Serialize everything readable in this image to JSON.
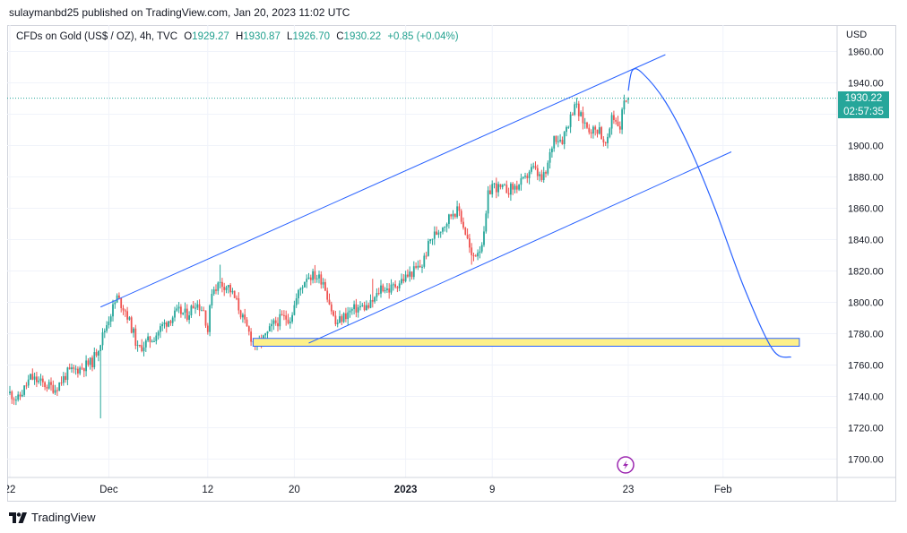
{
  "header": {
    "published": "sulaymanbd25 published on TradingView.com, Jan 20, 2023 11:02 UTC"
  },
  "legend": {
    "symbol": "CFDs on Gold (US$ / OZ), 4h, TVC",
    "open_label": "O",
    "open": "1929.27",
    "high_label": "H",
    "high": "1930.87",
    "low_label": "L",
    "low": "1926.70",
    "close_label": "C",
    "close": "1930.22",
    "change": "+0.85 (+0.04%)"
  },
  "price_axis": {
    "currency": "USD",
    "current_price": "1930.22",
    "countdown": "02:57:35"
  },
  "footer": {
    "brand": "TradingView"
  },
  "colors": {
    "up": "#26a69a",
    "down": "#ef5350",
    "trendline": "#2962ff",
    "zone_fill": "#fdf08a",
    "zone_border": "#2962ff",
    "lightning": "#9c27b0"
  },
  "icons": {
    "event_marker": "lightning-icon",
    "logo": "tradingview-logo-icon"
  },
  "chart_data": {
    "type": "candlestick",
    "timeframe": "4h",
    "ylim": [
      1690,
      1970
    ],
    "y_ticks": [
      1700,
      1720,
      1740,
      1760,
      1780,
      1800,
      1820,
      1840,
      1860,
      1880,
      1900,
      1920,
      1940,
      1960
    ],
    "x_ticks": [
      {
        "label": "22",
        "idx": 0
      },
      {
        "label": "Dec",
        "idx": 48
      },
      {
        "label": "12",
        "idx": 96
      },
      {
        "label": "20",
        "idx": 138
      },
      {
        "label": "2023",
        "idx": 192
      },
      {
        "label": "9",
        "idx": 234
      },
      {
        "label": "23",
        "idx": 300
      },
      {
        "label": "Feb",
        "idx": 346
      }
    ],
    "anchors": [
      [
        0,
        1742
      ],
      [
        4,
        1738
      ],
      [
        10,
        1752
      ],
      [
        16,
        1748
      ],
      [
        22,
        1745
      ],
      [
        28,
        1755
      ],
      [
        34,
        1758
      ],
      [
        40,
        1762
      ],
      [
        44,
        1775
      ],
      [
        48,
        1790
      ],
      [
        52,
        1803
      ],
      [
        56,
        1795
      ],
      [
        60,
        1780
      ],
      [
        62,
        1770
      ],
      [
        66,
        1774
      ],
      [
        70,
        1778
      ],
      [
        74,
        1785
      ],
      [
        78,
        1790
      ],
      [
        82,
        1794
      ],
      [
        86,
        1792
      ],
      [
        90,
        1800
      ],
      [
        94,
        1795
      ],
      [
        96,
        1782
      ],
      [
        98,
        1808
      ],
      [
        102,
        1812
      ],
      [
        106,
        1810
      ],
      [
        110,
        1800
      ],
      [
        114,
        1786
      ],
      [
        118,
        1775
      ],
      [
        120,
        1773
      ],
      [
        124,
        1778
      ],
      [
        128,
        1786
      ],
      [
        132,
        1790
      ],
      [
        136,
        1790
      ],
      [
        140,
        1806
      ],
      [
        144,
        1817
      ],
      [
        148,
        1817
      ],
      [
        152,
        1814
      ],
      [
        155,
        1800
      ],
      [
        158,
        1786
      ],
      [
        162,
        1791
      ],
      [
        166,
        1795
      ],
      [
        170,
        1797
      ],
      [
        174,
        1797
      ],
      [
        178,
        1804
      ],
      [
        180,
        1810
      ],
      [
        184,
        1808
      ],
      [
        188,
        1812
      ],
      [
        192,
        1816
      ],
      [
        196,
        1820
      ],
      [
        200,
        1824
      ],
      [
        204,
        1840
      ],
      [
        208,
        1846
      ],
      [
        212,
        1852
      ],
      [
        215,
        1858
      ],
      [
        218,
        1858
      ],
      [
        222,
        1840
      ],
      [
        224,
        1828
      ],
      [
        228,
        1835
      ],
      [
        230,
        1842
      ],
      [
        232,
        1868
      ],
      [
        234,
        1875
      ],
      [
        238,
        1872
      ],
      [
        242,
        1872
      ],
      [
        246,
        1874
      ],
      [
        250,
        1878
      ],
      [
        252,
        1884
      ],
      [
        254,
        1885
      ],
      [
        258,
        1878
      ],
      [
        260,
        1882
      ],
      [
        264,
        1906
      ],
      [
        268,
        1904
      ],
      [
        270,
        1912
      ],
      [
        272,
        1918
      ],
      [
        274,
        1928
      ],
      [
        276,
        1920
      ],
      [
        280,
        1912
      ],
      [
        284,
        1909
      ],
      [
        286,
        1912
      ],
      [
        288,
        1900
      ],
      [
        290,
        1902
      ],
      [
        292,
        1920
      ],
      [
        296,
        1912
      ],
      [
        298,
        1930
      ],
      [
        300,
        1930
      ]
    ],
    "last_candle": {
      "open": 1929.27,
      "high": 1930.87,
      "low": 1926.7,
      "close": 1930.22,
      "change": 0.85,
      "change_pct": 0.04
    },
    "drawings": {
      "channel_upper": [
        [
          44,
          1797
        ],
        [
          318,
          1958
        ]
      ],
      "channel_lower": [
        [
          145,
          1774
        ],
        [
          350,
          1896
        ]
      ],
      "support_zone": {
        "x_from": 118,
        "x_to": 383,
        "y_low": 1772,
        "y_high": 1777
      },
      "projection_curve": [
        [
          300,
          1935
        ],
        [
          302,
          1948
        ],
        [
          307,
          1946
        ],
        [
          318,
          1928
        ],
        [
          330,
          1898
        ],
        [
          342,
          1860
        ],
        [
          356,
          1810
        ],
        [
          370,
          1770
        ],
        [
          379,
          1765
        ]
      ]
    }
  }
}
